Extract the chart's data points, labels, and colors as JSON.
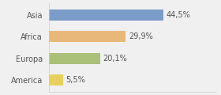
{
  "categories": [
    "Asia",
    "Africa",
    "Europa",
    "America"
  ],
  "values": [
    44.5,
    29.9,
    20.1,
    5.5
  ],
  "labels": [
    "44,5%",
    "29,9%",
    "20,1%",
    "5,5%"
  ],
  "bar_colors": [
    "#7b9cc8",
    "#e8b87a",
    "#aabf78",
    "#e8d060"
  ],
  "background_color": "#f0f0f0",
  "xlim": [
    0,
    65
  ],
  "label_fontsize": 7,
  "category_fontsize": 7,
  "bar_height": 0.5
}
